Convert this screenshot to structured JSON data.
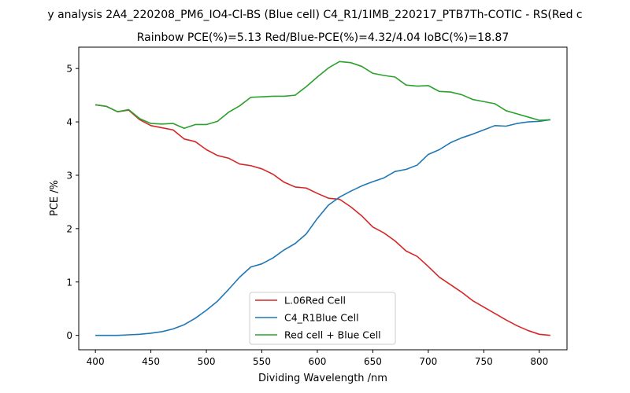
{
  "chart_data": {
    "type": "line",
    "title": "y analysis 2A4_220208_PM6_IO4-Cl-BS (Blue cell) C4_R1/1IMB_220217_PTB7Th-COTIC - RS(Red c",
    "subtitle": "Rainbow PCE(%)=5.13  Red/Blue-PCE(%)=4.32/4.04   IoBC(%)=18.87",
    "xlabel": "Dividing Wavelength /nm",
    "ylabel": "PCE /%",
    "xlim": [
      385,
      825
    ],
    "ylim": [
      -0.27,
      5.4
    ],
    "xticks": [
      400,
      450,
      500,
      550,
      600,
      650,
      700,
      750,
      800
    ],
    "yticks": [
      0,
      1,
      2,
      3,
      4,
      5
    ],
    "legend_position": "lower center",
    "x": [
      400,
      410,
      420,
      430,
      440,
      450,
      460,
      470,
      480,
      490,
      500,
      510,
      520,
      530,
      540,
      550,
      560,
      570,
      580,
      590,
      600,
      610,
      620,
      630,
      640,
      650,
      660,
      670,
      680,
      690,
      700,
      710,
      720,
      730,
      740,
      750,
      760,
      770,
      780,
      790,
      800,
      810
    ],
    "series": [
      {
        "name": "L.06Red Cell",
        "color": "#d62728",
        "values": [
          4.32,
          4.29,
          4.19,
          4.22,
          4.04,
          3.93,
          3.89,
          3.85,
          3.68,
          3.63,
          3.48,
          3.37,
          3.32,
          3.21,
          3.18,
          3.12,
          3.02,
          2.87,
          2.78,
          2.76,
          2.66,
          2.57,
          2.55,
          2.41,
          2.24,
          2.03,
          1.92,
          1.77,
          1.58,
          1.48,
          1.29,
          1.09,
          0.95,
          0.81,
          0.65,
          0.53,
          0.41,
          0.29,
          0.18,
          0.09,
          0.02,
          0.0
        ]
      },
      {
        "name": "C4_R1Blue Cell",
        "color": "#1f77b4",
        "values": [
          0.0,
          0.0,
          0.0,
          0.01,
          0.02,
          0.04,
          0.07,
          0.12,
          0.2,
          0.32,
          0.47,
          0.64,
          0.86,
          1.09,
          1.28,
          1.34,
          1.45,
          1.6,
          1.72,
          1.9,
          2.19,
          2.44,
          2.59,
          2.7,
          2.8,
          2.88,
          2.95,
          3.07,
          3.11,
          3.19,
          3.39,
          3.48,
          3.61,
          3.7,
          3.77,
          3.85,
          3.93,
          3.92,
          3.97,
          4.0,
          4.01,
          4.04
        ]
      },
      {
        "name": "Red cell + Blue Cell",
        "color": "#2ca02c",
        "values": [
          4.32,
          4.29,
          4.19,
          4.23,
          4.06,
          3.97,
          3.96,
          3.97,
          3.88,
          3.95,
          3.95,
          4.01,
          4.18,
          4.3,
          4.46,
          4.47,
          4.48,
          4.48,
          4.5,
          4.66,
          4.84,
          5.01,
          5.13,
          5.11,
          5.04,
          4.91,
          4.87,
          4.84,
          4.69,
          4.67,
          4.68,
          4.57,
          4.56,
          4.51,
          4.42,
          4.38,
          4.34,
          4.21,
          4.15,
          4.09,
          4.03,
          4.04
        ]
      }
    ]
  }
}
